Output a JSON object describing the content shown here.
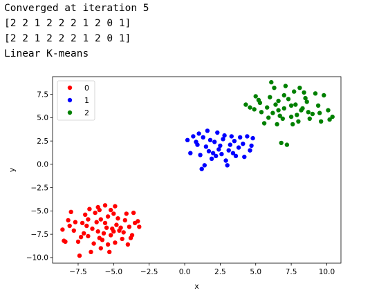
{
  "console": {
    "lines": [
      "Converged at iteration 5",
      "[2 2 1 2 2 2 1 2 0 1]",
      "[2 2 1 2 2 2 1 2 0 1]",
      "Linear K-means"
    ]
  },
  "chart_data": {
    "type": "scatter",
    "title": "",
    "xlabel": "x",
    "ylabel": "y",
    "xlim": [
      -9.3,
      11.0
    ],
    "ylim": [
      -10.6,
      9.4
    ],
    "xticks": [
      -7.5,
      -5.0,
      -2.5,
      0.0,
      2.5,
      5.0,
      7.5,
      10.0
    ],
    "xtick_labels": [
      "−7.5",
      "−5.0",
      "−2.5",
      "0.0",
      "2.5",
      "5.0",
      "7.5",
      "10.0"
    ],
    "yticks": [
      -10.0,
      -7.5,
      -5.0,
      -2.5,
      0.0,
      2.5,
      5.0,
      7.5
    ],
    "ytick_labels": [
      "−10.0",
      "−7.5",
      "−5.0",
      "−2.5",
      "0.0",
      "2.5",
      "5.0",
      "7.5"
    ],
    "grid": false,
    "legend_position": "upper-left",
    "series": [
      {
        "name": "0",
        "color": "#ff0000",
        "points": [
          [
            -5.5,
            -6.8
          ],
          [
            -6.1,
            -7.2
          ],
          [
            -4.8,
            -6.5
          ],
          [
            -5.9,
            -5.9
          ],
          [
            -6.5,
            -6.9
          ],
          [
            -5.2,
            -7.6
          ],
          [
            -4.6,
            -7.1
          ],
          [
            -7.2,
            -6.3
          ],
          [
            -5.8,
            -8.1
          ],
          [
            -6.8,
            -7.7
          ],
          [
            -4.2,
            -6.0
          ],
          [
            -5.0,
            -5.3
          ],
          [
            -7.8,
            -7.1
          ],
          [
            -6.3,
            -5.2
          ],
          [
            -3.9,
            -6.7
          ],
          [
            -5.4,
            -8.6
          ],
          [
            -8.2,
            -6.0
          ],
          [
            -7.5,
            -8.3
          ],
          [
            -4.4,
            -8.0
          ],
          [
            -6.0,
            -4.9
          ],
          [
            -3.7,
            -7.6
          ],
          [
            -8.5,
            -8.2
          ],
          [
            -3.5,
            -6.3
          ],
          [
            -7.0,
            -5.4
          ],
          [
            -5.6,
            -4.4
          ],
          [
            -4.9,
            -4.5
          ],
          [
            -8.0,
            -5.1
          ],
          [
            -3.6,
            -5.2
          ],
          [
            -6.6,
            -9.4
          ],
          [
            -5.3,
            -9.4
          ],
          [
            -7.4,
            -9.8
          ],
          [
            -4.0,
            -8.6
          ],
          [
            -8.6,
            -7.0
          ],
          [
            -3.3,
            -6.1
          ],
          [
            -6.2,
            -6.2
          ],
          [
            -5.1,
            -6.9
          ],
          [
            -5.7,
            -7.4
          ],
          [
            -6.9,
            -6.6
          ],
          [
            -4.5,
            -6.8
          ],
          [
            -6.0,
            -7.9
          ],
          [
            -7.1,
            -7.4
          ],
          [
            -4.7,
            -5.8
          ],
          [
            -6.4,
            -8.5
          ],
          [
            -5.2,
            -4.9
          ],
          [
            -3.2,
            -6.7
          ],
          [
            -7.7,
            -6.2
          ],
          [
            -8.4,
            -8.3
          ],
          [
            -4.1,
            -5.3
          ],
          [
            -6.7,
            -4.8
          ],
          [
            -5.9,
            -9.0
          ],
          [
            -5.0,
            -7.2
          ],
          [
            -5.6,
            -6.3
          ],
          [
            -4.3,
            -7.3
          ],
          [
            -6.8,
            -5.9
          ],
          [
            -5.4,
            -5.6
          ],
          [
            -7.3,
            -7.8
          ],
          [
            -4.9,
            -8.4
          ],
          [
            -3.8,
            -7.9
          ],
          [
            -8.1,
            -6.6
          ],
          [
            -6.1,
            -4.6
          ]
        ]
      },
      {
        "name": "1",
        "color": "#0000ff",
        "points": [
          [
            2.5,
            2.0
          ],
          [
            1.8,
            2.6
          ],
          [
            3.1,
            1.5
          ],
          [
            2.0,
            1.2
          ],
          [
            3.5,
            2.5
          ],
          [
            2.8,
            3.1
          ],
          [
            1.5,
            1.9
          ],
          [
            2.2,
            0.9
          ],
          [
            3.8,
            1.8
          ],
          [
            1.3,
            2.9
          ],
          [
            2.6,
            1.1
          ],
          [
            3.3,
            3.0
          ],
          [
            0.9,
            2.1
          ],
          [
            4.1,
            2.2
          ],
          [
            1.1,
            1.0
          ],
          [
            2.9,
            0.4
          ],
          [
            1.6,
            3.6
          ],
          [
            2.3,
            3.4
          ],
          [
            3.6,
            0.9
          ],
          [
            0.2,
            2.6
          ],
          [
            4.4,
            3.0
          ],
          [
            1.4,
            -0.1
          ],
          [
            1.2,
            -0.5
          ],
          [
            3.0,
            -0.1
          ],
          [
            4.8,
            2.8
          ],
          [
            4.6,
            1.5
          ],
          [
            0.6,
            3.0
          ],
          [
            0.4,
            1.2
          ],
          [
            2.1,
            2.4
          ],
          [
            2.7,
            2.7
          ],
          [
            3.4,
            1.2
          ],
          [
            1.9,
            0.6
          ],
          [
            4.2,
            0.8
          ],
          [
            1.0,
            3.3
          ],
          [
            3.9,
            2.9
          ],
          [
            2.4,
            1.6
          ],
          [
            3.2,
            2.1
          ],
          [
            1.7,
            1.4
          ],
          [
            0.8,
            2.4
          ],
          [
            4.7,
            2.0
          ]
        ]
      },
      {
        "name": "2",
        "color": "#008000",
        "points": [
          [
            7.0,
            6.0
          ],
          [
            6.2,
            5.5
          ],
          [
            7.8,
            6.4
          ],
          [
            6.6,
            6.8
          ],
          [
            7.5,
            5.1
          ],
          [
            8.2,
            5.8
          ],
          [
            5.8,
            6.1
          ],
          [
            6.9,
            4.9
          ],
          [
            8.6,
            6.7
          ],
          [
            6.0,
            7.2
          ],
          [
            7.3,
            7.0
          ],
          [
            9.0,
            5.4
          ],
          [
            5.4,
            5.6
          ],
          [
            8.0,
            4.6
          ],
          [
            6.5,
            4.3
          ],
          [
            7.7,
            7.8
          ],
          [
            5.2,
            6.9
          ],
          [
            9.4,
            6.3
          ],
          [
            4.9,
            5.9
          ],
          [
            6.3,
            8.2
          ],
          [
            7.1,
            8.4
          ],
          [
            8.8,
            4.9
          ],
          [
            10.1,
            5.8
          ],
          [
            9.6,
            4.6
          ],
          [
            10.4,
            5.1
          ],
          [
            5.6,
            4.4
          ],
          [
            4.6,
            6.1
          ],
          [
            8.4,
            7.7
          ],
          [
            9.8,
            7.4
          ],
          [
            4.3,
            6.4
          ],
          [
            6.8,
            2.3
          ],
          [
            7.2,
            2.1
          ],
          [
            6.1,
            8.8
          ],
          [
            8.1,
            8.2
          ],
          [
            9.2,
            7.6
          ],
          [
            5.0,
            7.3
          ],
          [
            6.6,
            5.8
          ],
          [
            7.5,
            6.3
          ],
          [
            8.3,
            6.0
          ],
          [
            7.9,
            5.3
          ],
          [
            6.4,
            6.4
          ],
          [
            5.9,
            5.0
          ],
          [
            8.7,
            5.6
          ],
          [
            7.0,
            7.4
          ],
          [
            9.5,
            5.5
          ],
          [
            5.3,
            6.6
          ],
          [
            7.6,
            4.3
          ],
          [
            8.5,
            7.1
          ],
          [
            6.7,
            5.2
          ],
          [
            10.2,
            4.8
          ]
        ]
      }
    ]
  }
}
